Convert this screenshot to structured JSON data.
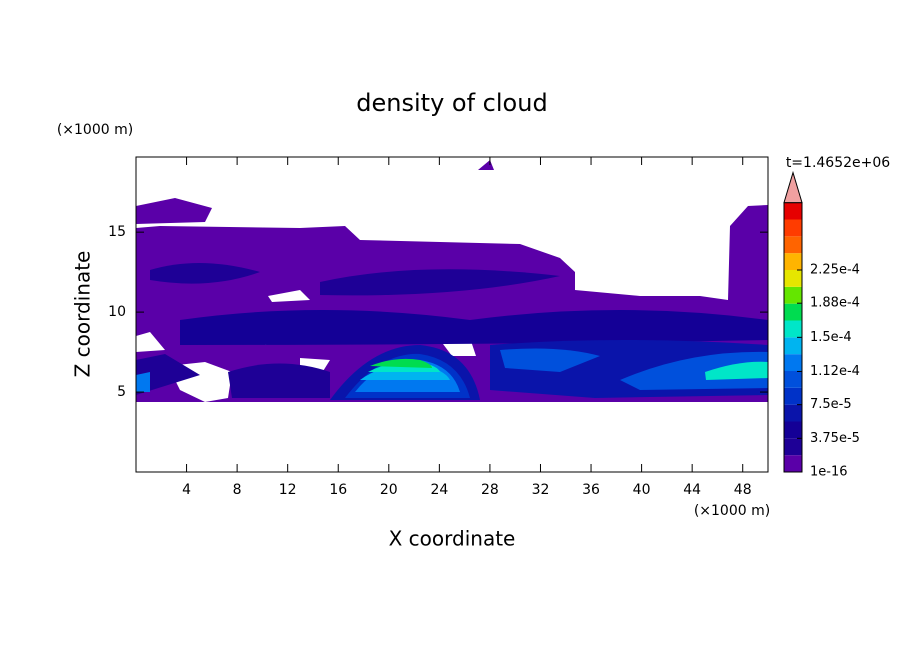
{
  "chart_data": {
    "type": "contour",
    "title": "density of cloud",
    "xlabel": "X coordinate",
    "ylabel": "Z coordinate",
    "x_unit": "(×1000 m)",
    "y_unit": "(×1000 m)",
    "time_label": "t=1.4652e+06",
    "xlim": [
      0,
      50
    ],
    "ylim": [
      0,
      19.7
    ],
    "xticks": [
      4,
      8,
      12,
      16,
      20,
      24,
      28,
      32,
      36,
      40,
      44,
      48
    ],
    "yticks": [
      5,
      10,
      15
    ],
    "colorbar": {
      "levels": [
        {
          "value": 1e-16,
          "label": "1e-16"
        },
        {
          "value": 3.75e-05,
          "label": "3.75e-5"
        },
        {
          "value": 7.5e-05,
          "label": "7.5e-5"
        },
        {
          "value": 0.000112,
          "label": "1.12e-4"
        },
        {
          "value": 0.00015,
          "label": "1.5e-4"
        },
        {
          "value": 0.000188,
          "label": "1.88e-4"
        },
        {
          "value": 0.000225,
          "label": "2.25e-4"
        }
      ],
      "colors": [
        "#5a00a8",
        "#1e0096",
        "#140096",
        "#0a14aa",
        "#0032c8",
        "#0050dc",
        "#0078f0",
        "#00b4f0",
        "#00e6c8",
        "#00dc50",
        "#64e600",
        "#e6e600",
        "#ffb400",
        "#ff6400",
        "#ff3c00",
        "#e60000"
      ],
      "extend_color": "#f0a0a0"
    }
  }
}
